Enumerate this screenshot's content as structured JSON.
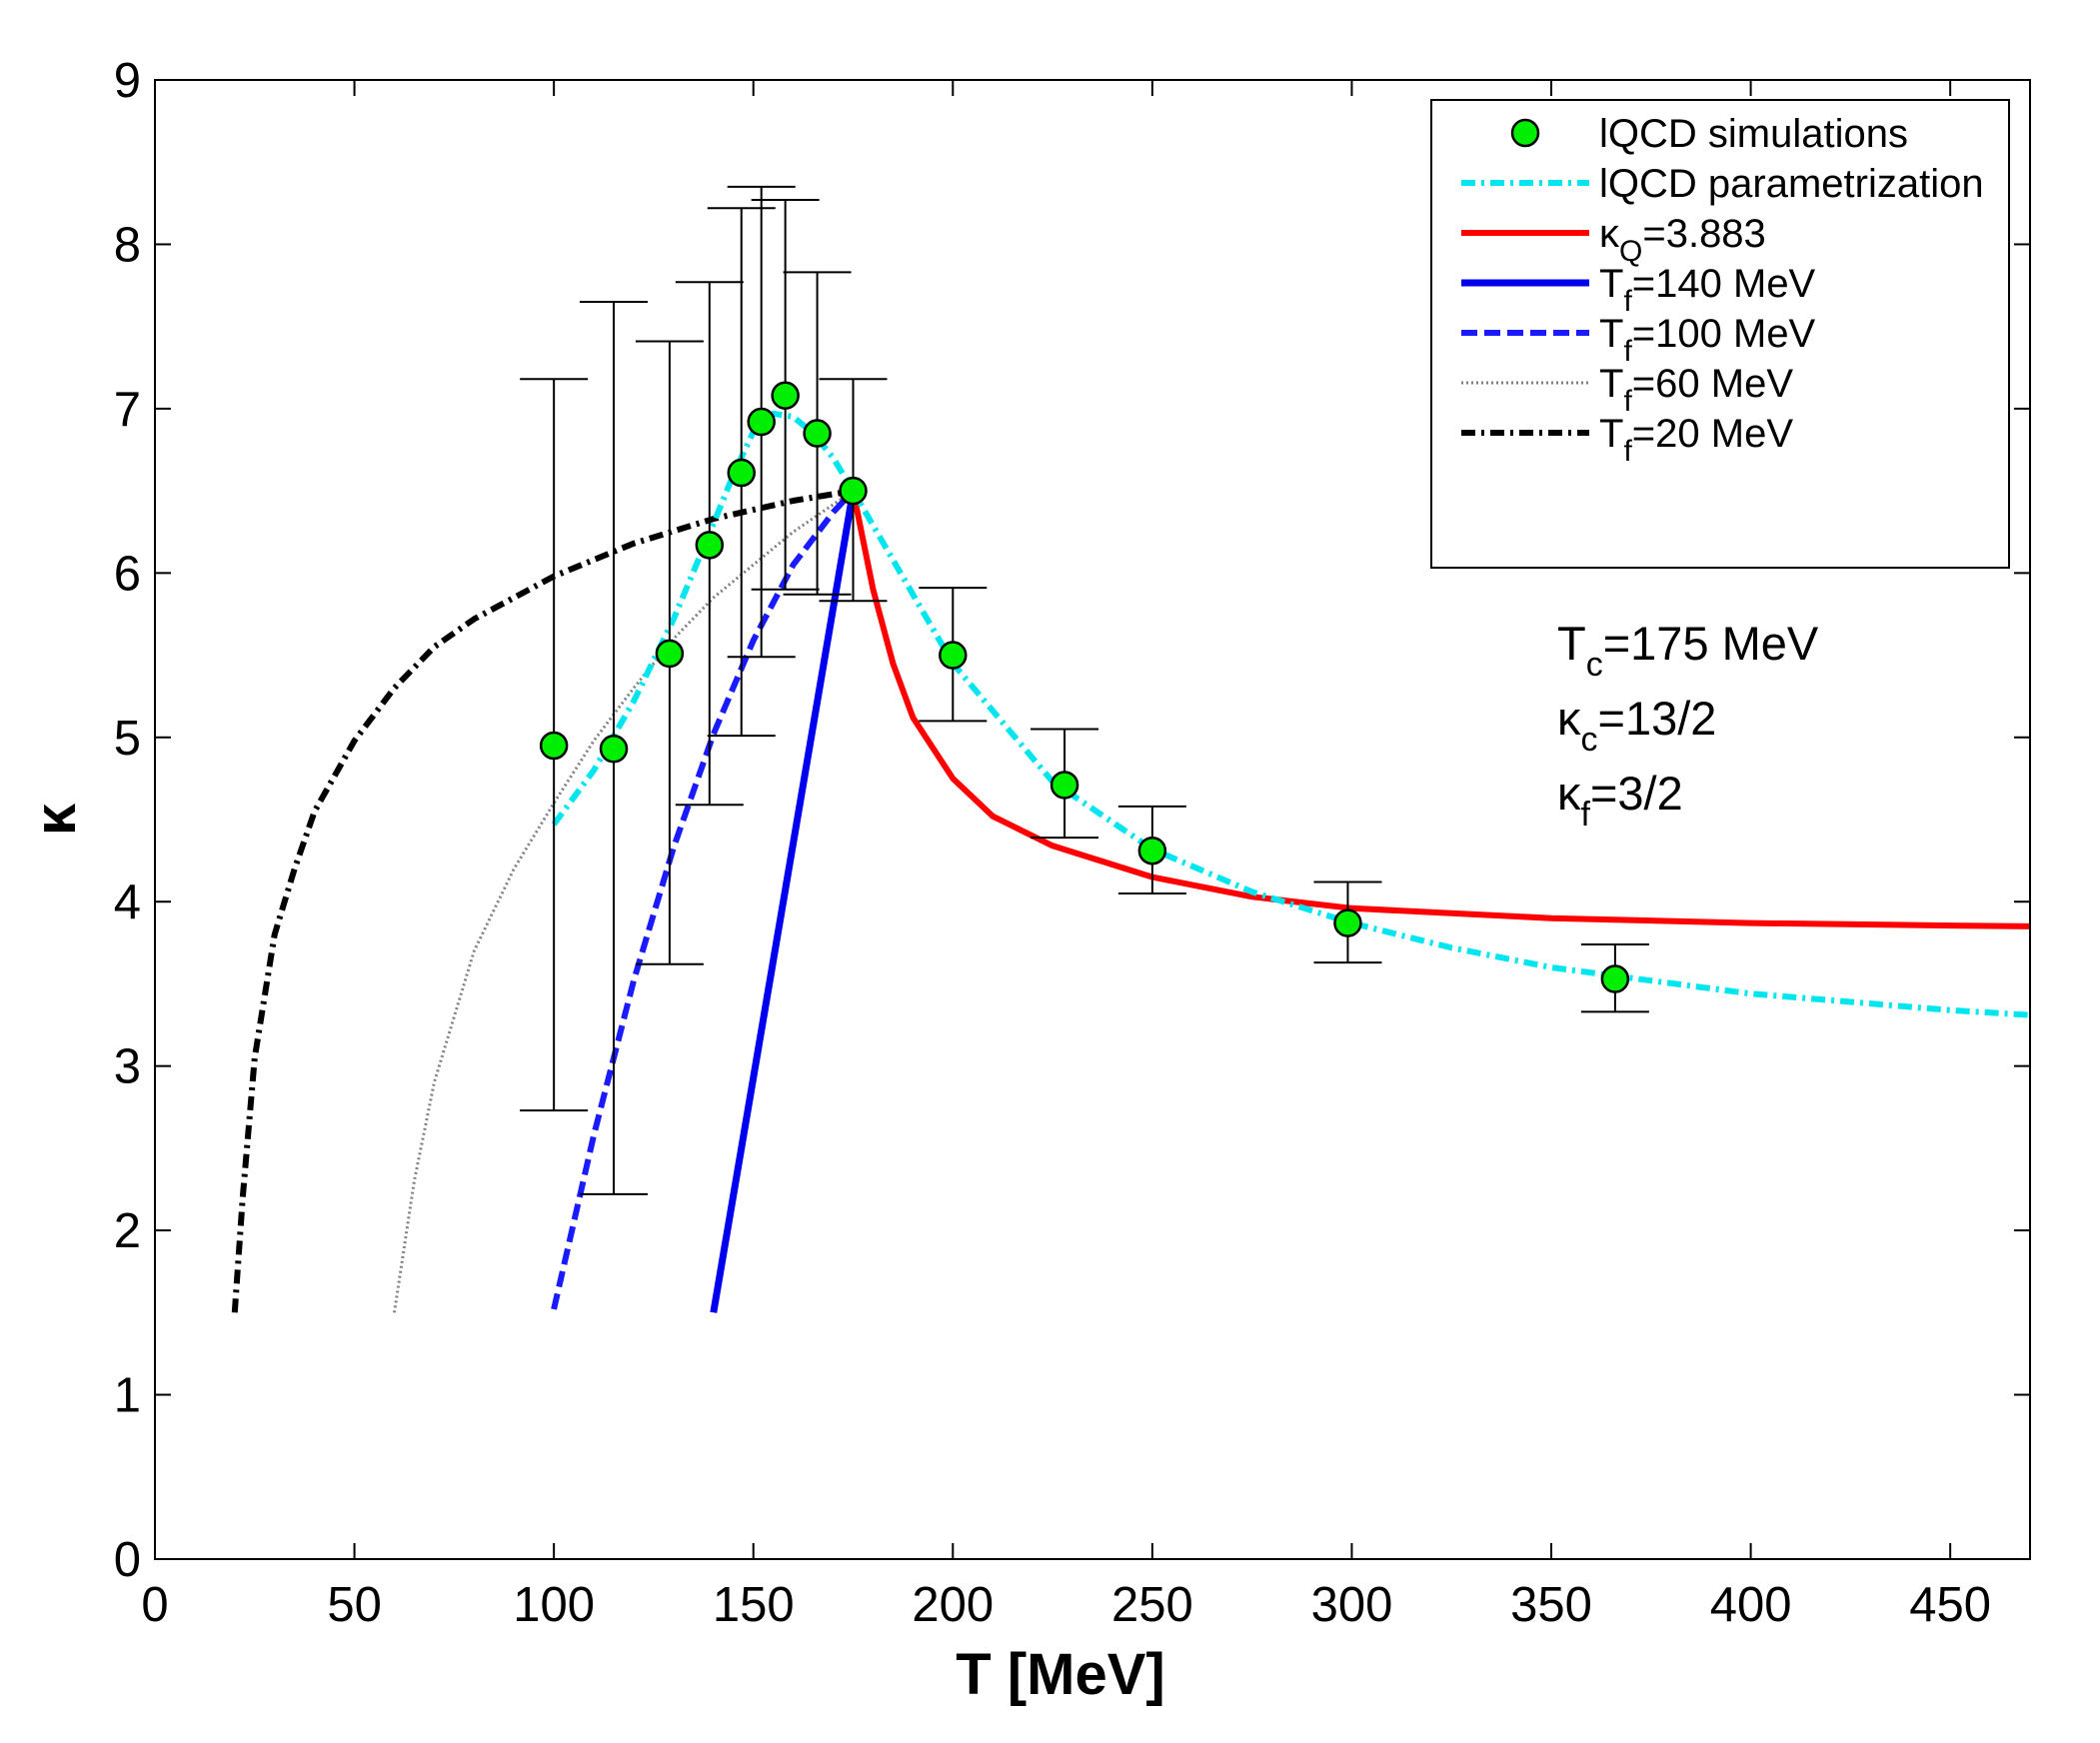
{
  "chart_data": {
    "type": "line",
    "title": "",
    "xlabel": "T [MeV]",
    "ylabel": "κ",
    "xlim": [
      0,
      470
    ],
    "ylim": [
      0,
      9
    ],
    "xticks": [
      0,
      50,
      100,
      150,
      200,
      250,
      300,
      350,
      400,
      450
    ],
    "yticks": [
      0,
      1,
      2,
      3,
      4,
      5,
      6,
      7,
      8,
      9
    ],
    "grid": false,
    "legend_position": "top-right",
    "colors": {
      "lqcd_points": "#00ee00",
      "lqcd_param": "#00e5ee",
      "kappa_q": "#ff0000",
      "tf140": "#0000ee",
      "tf100": "#1a1aff",
      "tf60": "#808080",
      "tf20": "#000000"
    },
    "series": [
      {
        "id": "lqcd_points",
        "name": "lQCD simulations",
        "kind": "scatter",
        "points": [
          {
            "x": 100,
            "y": 4.95,
            "lo": 2.73,
            "hi": 7.18
          },
          {
            "x": 115,
            "y": 4.93,
            "lo": 2.22,
            "hi": 7.65
          },
          {
            "x": 129,
            "y": 5.51,
            "lo": 3.62,
            "hi": 7.41
          },
          {
            "x": 139,
            "y": 6.17,
            "lo": 4.59,
            "hi": 7.77
          },
          {
            "x": 147,
            "y": 6.61,
            "lo": 5.01,
            "hi": 8.22
          },
          {
            "x": 152,
            "y": 6.92,
            "lo": 5.49,
            "hi": 8.35
          },
          {
            "x": 158,
            "y": 7.08,
            "lo": 5.9,
            "hi": 8.27
          },
          {
            "x": 166,
            "y": 6.85,
            "lo": 5.87,
            "hi": 7.83
          },
          {
            "x": 175,
            "y": 6.5,
            "lo": 5.83,
            "hi": 7.18
          },
          {
            "x": 200,
            "y": 5.5,
            "lo": 5.1,
            "hi": 5.91
          },
          {
            "x": 228,
            "y": 4.71,
            "lo": 4.39,
            "hi": 5.05
          },
          {
            "x": 250,
            "y": 4.31,
            "lo": 4.05,
            "hi": 4.58
          },
          {
            "x": 299,
            "y": 3.87,
            "lo": 3.63,
            "hi": 4.12
          },
          {
            "x": 366,
            "y": 3.53,
            "lo": 3.33,
            "hi": 3.74
          }
        ]
      },
      {
        "id": "lqcd_param",
        "name": "lQCD parametrization",
        "kind": "line",
        "style": "dashdot",
        "x": [
          100,
          110,
          120,
          130,
          140,
          145,
          150,
          155,
          160,
          165,
          170,
          175,
          185,
          200,
          225,
          250,
          275,
          300,
          325,
          350,
          375,
          400,
          425,
          450,
          470
        ],
        "y": [
          4.47,
          4.8,
          5.22,
          5.72,
          6.3,
          6.6,
          6.86,
          6.97,
          6.95,
          6.85,
          6.7,
          6.5,
          6.08,
          5.45,
          4.73,
          4.32,
          4.06,
          3.87,
          3.72,
          3.6,
          3.52,
          3.44,
          3.39,
          3.34,
          3.31
        ]
      },
      {
        "id": "kappa_q",
        "name": "κQ=3.883",
        "kind": "line",
        "style": "solid",
        "x": [
          175,
          180,
          185,
          190,
          200,
          210,
          225,
          250,
          275,
          300,
          350,
          400,
          450,
          470
        ],
        "y": [
          6.5,
          5.9,
          5.45,
          5.12,
          4.75,
          4.52,
          4.34,
          4.15,
          4.03,
          3.96,
          3.9,
          3.87,
          3.855,
          3.85
        ]
      },
      {
        "id": "tf140",
        "name": "Tf=140 MeV",
        "kind": "line",
        "style": "solid",
        "x": [
          140,
          175
        ],
        "y": [
          1.5,
          6.5
        ]
      },
      {
        "id": "tf100",
        "name": "Tf=100 MeV",
        "kind": "line",
        "style": "dashed",
        "x": [
          100,
          110,
          120,
          130,
          140,
          150,
          160,
          170,
          175
        ],
        "y": [
          1.52,
          2.58,
          3.52,
          4.33,
          5.02,
          5.59,
          6.05,
          6.37,
          6.5
        ]
      },
      {
        "id": "tf60",
        "name": "Tf=60 MeV",
        "kind": "line",
        "style": "dotted",
        "x": [
          60,
          65,
          70,
          80,
          90,
          100,
          110,
          120,
          130,
          140,
          150,
          160,
          175
        ],
        "y": [
          1.5,
          2.3,
          2.9,
          3.7,
          4.2,
          4.6,
          4.98,
          5.3,
          5.6,
          5.85,
          6.05,
          6.25,
          6.5
        ]
      },
      {
        "id": "tf20",
        "name": "Tf=20 MeV",
        "kind": "line",
        "style": "dashdot",
        "x": [
          20,
          22,
          25,
          30,
          35,
          40,
          50,
          60,
          70,
          80,
          100,
          120,
          140,
          160,
          175
        ],
        "y": [
          1.5,
          2.2,
          3.05,
          3.8,
          4.2,
          4.55,
          4.98,
          5.3,
          5.55,
          5.72,
          5.98,
          6.18,
          6.33,
          6.44,
          6.5
        ]
      }
    ],
    "annotations": [
      {
        "base": "T",
        "sub": "c",
        "rest": "=175 MeV"
      },
      {
        "base": "κ",
        "sub": "c",
        "rest": "=13/2"
      },
      {
        "base": "κ",
        "sub": "f",
        "rest": "=3/2"
      }
    ]
  },
  "legend": [
    {
      "series": "lqcd_points",
      "base": "lQCD simulations",
      "sub": "",
      "rest": ""
    },
    {
      "series": "lqcd_param",
      "base": "lQCD parametrization",
      "sub": "",
      "rest": ""
    },
    {
      "series": "kappa_q",
      "base": "κ",
      "sub": "Q",
      "rest": "=3.883"
    },
    {
      "series": "tf140",
      "base": "T",
      "sub": "f",
      "rest": "=140 MeV"
    },
    {
      "series": "tf100",
      "base": "T",
      "sub": "f",
      "rest": "=100 MeV"
    },
    {
      "series": "tf60",
      "base": "T",
      "sub": "f",
      "rest": "=60 MeV"
    },
    {
      "series": "tf20",
      "base": "T",
      "sub": "f",
      "rest": "=20 MeV"
    }
  ]
}
